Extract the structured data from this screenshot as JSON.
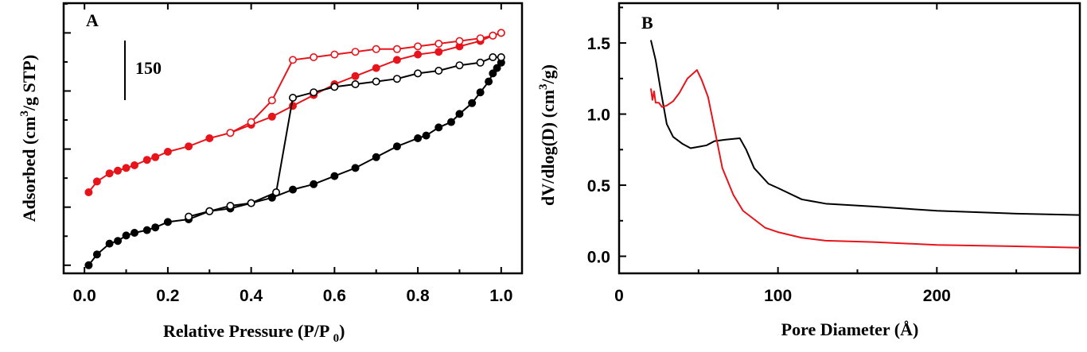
{
  "chart_data": [
    {
      "type": "line",
      "panel_label": "A",
      "xlabel_main": "Relative Pressure (P/P ",
      "xlabel_sub": "0",
      "xlabel_close": ")",
      "ylabel_pre": "Adsorbed (cm",
      "ylabel_sup": "3",
      "ylabel_post": "/g STP)",
      "xlim": [
        -0.05,
        1.05
      ],
      "ylim": [
        0,
        1
      ],
      "xticks": [
        "0.0",
        "0.2",
        "0.4",
        "0.6",
        "0.8",
        "1.0"
      ],
      "scale_bar_label": "150",
      "scale_bar_fraction": 0.215,
      "y_tick_count": 7,
      "series": [
        {
          "name": "red adsorption",
          "color": "#e8141b",
          "marker": "filled",
          "x": [
            0.01,
            0.03,
            0.06,
            0.08,
            0.1,
            0.12,
            0.15,
            0.17,
            0.2,
            0.25,
            0.3,
            0.35,
            0.4,
            0.45,
            0.5,
            0.55,
            0.6,
            0.65,
            0.7,
            0.75,
            0.8,
            0.85,
            0.9,
            0.95,
            0.98,
            1.0
          ],
          "y": [
            0.3,
            0.34,
            0.37,
            0.38,
            0.39,
            0.4,
            0.42,
            0.43,
            0.45,
            0.47,
            0.5,
            0.52,
            0.55,
            0.58,
            0.62,
            0.66,
            0.7,
            0.73,
            0.76,
            0.79,
            0.81,
            0.82,
            0.84,
            0.86,
            0.88,
            0.89
          ]
        },
        {
          "name": "red desorption",
          "color": "#e8141b",
          "marker": "open",
          "x": [
            1.0,
            0.98,
            0.95,
            0.9,
            0.85,
            0.8,
            0.75,
            0.7,
            0.65,
            0.6,
            0.55,
            0.5,
            0.45,
            0.4,
            0.35
          ],
          "y": [
            0.89,
            0.88,
            0.87,
            0.86,
            0.85,
            0.84,
            0.83,
            0.83,
            0.82,
            0.81,
            0.8,
            0.79,
            0.64,
            0.56,
            0.52
          ]
        },
        {
          "name": "black adsorption",
          "color": "#000000",
          "marker": "filled",
          "x": [
            0.01,
            0.03,
            0.06,
            0.08,
            0.1,
            0.12,
            0.15,
            0.17,
            0.2,
            0.25,
            0.3,
            0.35,
            0.4,
            0.45,
            0.5,
            0.55,
            0.6,
            0.65,
            0.7,
            0.75,
            0.8,
            0.82,
            0.85,
            0.88,
            0.9,
            0.93,
            0.95,
            0.97,
            0.98,
            0.99,
            1.0
          ],
          "y": [
            0.03,
            0.07,
            0.11,
            0.12,
            0.14,
            0.15,
            0.16,
            0.17,
            0.19,
            0.2,
            0.23,
            0.24,
            0.26,
            0.28,
            0.31,
            0.33,
            0.36,
            0.39,
            0.43,
            0.47,
            0.5,
            0.51,
            0.54,
            0.56,
            0.59,
            0.63,
            0.67,
            0.71,
            0.74,
            0.76,
            0.78
          ]
        },
        {
          "name": "black desorption",
          "color": "#000000",
          "marker": "open",
          "x": [
            1.0,
            0.98,
            0.95,
            0.9,
            0.85,
            0.8,
            0.75,
            0.7,
            0.65,
            0.6,
            0.55,
            0.5,
            0.46,
            0.4,
            0.35,
            0.3,
            0.25
          ],
          "y": [
            0.8,
            0.8,
            0.78,
            0.77,
            0.75,
            0.74,
            0.72,
            0.71,
            0.7,
            0.69,
            0.67,
            0.65,
            0.3,
            0.26,
            0.25,
            0.23,
            0.21
          ]
        }
      ]
    },
    {
      "type": "line",
      "panel_label": "B",
      "xlabel": "Pore Diameter (Å)",
      "ylabel_pre": "dV/dlog(D) (cm",
      "ylabel_sup": "3",
      "ylabel_post": "/g)",
      "xlim": [
        0,
        290
      ],
      "ylim": [
        -0.12,
        1.78
      ],
      "xticks": [
        {
          "v": 0,
          "label": "0"
        },
        {
          "v": 100,
          "label": "100"
        },
        {
          "v": 200,
          "label": "200"
        }
      ],
      "yticks": [
        {
          "v": 0.0,
          "label": "0.0"
        },
        {
          "v": 0.5,
          "label": "0.5"
        },
        {
          "v": 1.0,
          "label": "1.0"
        },
        {
          "v": 1.5,
          "label": "1.5"
        }
      ],
      "series": [
        {
          "name": "black",
          "color": "#000000",
          "x": [
            20,
            23,
            26,
            30,
            34,
            40,
            45,
            50,
            55,
            60,
            67,
            76,
            80,
            85,
            94,
            100,
            115,
            130,
            160,
            200,
            250,
            290
          ],
          "y": [
            1.52,
            1.38,
            1.18,
            0.93,
            0.84,
            0.79,
            0.76,
            0.77,
            0.78,
            0.81,
            0.82,
            0.83,
            0.75,
            0.62,
            0.51,
            0.48,
            0.4,
            0.37,
            0.35,
            0.32,
            0.3,
            0.29
          ]
        },
        {
          "name": "red",
          "color": "#e8141b",
          "x": [
            20,
            21,
            22,
            23,
            25,
            27,
            30,
            34,
            38,
            43,
            49,
            52,
            56,
            60,
            65,
            72,
            78,
            85,
            92,
            100,
            115,
            130,
            160,
            200,
            250,
            290
          ],
          "y": [
            1.18,
            1.1,
            1.16,
            1.08,
            1.08,
            1.05,
            1.06,
            1.09,
            1.15,
            1.25,
            1.31,
            1.24,
            1.12,
            0.9,
            0.62,
            0.43,
            0.32,
            0.26,
            0.2,
            0.17,
            0.13,
            0.11,
            0.1,
            0.08,
            0.07,
            0.06
          ]
        }
      ]
    }
  ]
}
